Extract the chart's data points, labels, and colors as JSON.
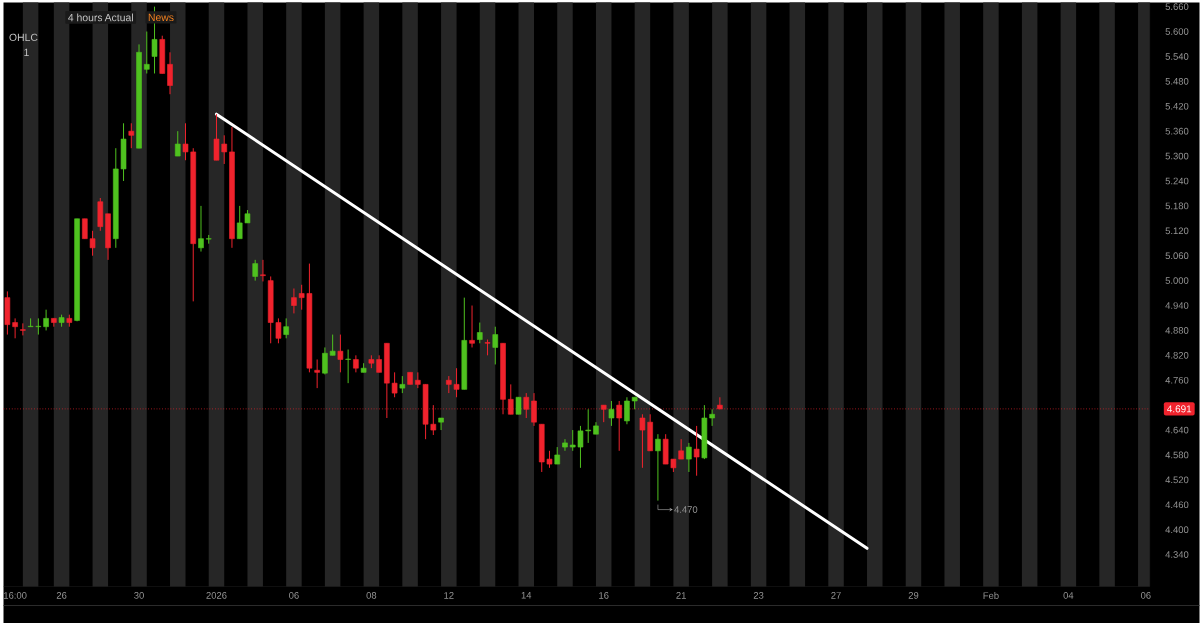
{
  "chart_data": {
    "type": "candlestick",
    "categories": [
      null,
      "16:00",
      null,
      null,
      null,
      null,
      null,
      "26",
      null,
      null,
      null,
      null,
      null,
      null,
      null,
      null,
      null,
      "30",
      null,
      null,
      null,
      null,
      null,
      null,
      null,
      null,
      null,
      "2026",
      null,
      null,
      null,
      null,
      null,
      null,
      null,
      null,
      null,
      "06",
      null,
      null,
      null,
      null,
      null,
      null,
      null,
      null,
      null,
      "08",
      null,
      null,
      null,
      null,
      null,
      null,
      null,
      null,
      null,
      "12",
      null,
      null,
      null,
      null,
      null,
      null,
      null,
      null,
      null,
      "14",
      null,
      null,
      null,
      null,
      null,
      null,
      null,
      null,
      null,
      "16",
      null,
      null,
      null,
      null,
      null,
      null,
      null,
      null,
      null,
      "21",
      null,
      null,
      null,
      null,
      null,
      null,
      null,
      null,
      null,
      "23",
      null,
      null,
      null,
      null,
      null,
      null,
      null,
      null,
      null,
      "27",
      null,
      null,
      null,
      null,
      null,
      null,
      null,
      null,
      null,
      "29",
      null,
      null,
      null,
      null,
      null,
      null,
      null,
      null,
      null,
      "Feb",
      null,
      null,
      null,
      null,
      null,
      null,
      null,
      null,
      null,
      "04",
      null,
      null,
      null,
      null,
      null,
      null,
      null,
      null,
      null,
      "06"
    ],
    "ohlc": [
      [
        4.959,
        4.974,
        4.87,
        4.894
      ],
      [
        4.899,
        4.909,
        4.861,
        4.889
      ],
      [
        4.882,
        4.897,
        4.868,
        4.88
      ],
      [
        4.889,
        4.909,
        4.889,
        4.89
      ],
      [
        4.889,
        4.909,
        4.87,
        4.89
      ],
      [
        4.889,
        4.93,
        4.88,
        4.909
      ],
      [
        4.909,
        4.909,
        4.889,
        4.899
      ],
      [
        4.899,
        4.918,
        4.889,
        4.911
      ],
      [
        4.909,
        4.918,
        4.889,
        4.899
      ],
      [
        4.904,
        5.149,
        4.902,
        5.149
      ],
      [
        5.149,
        5.149,
        5.101,
        5.101
      ],
      [
        5.101,
        5.12,
        5.06,
        5.079
      ],
      [
        5.19,
        5.199,
        5.12,
        5.13
      ],
      [
        5.161,
        5.161,
        5.05,
        5.079
      ],
      [
        5.101,
        5.319,
        5.079,
        5.269
      ],
      [
        5.269,
        5.379,
        5.24,
        5.341
      ],
      [
        5.36,
        5.379,
        5.319,
        5.35
      ],
      [
        5.319,
        5.569,
        5.319,
        5.55
      ],
      [
        5.509,
        5.6,
        5.499,
        5.521
      ],
      [
        5.54,
        5.66,
        5.499,
        5.581
      ],
      [
        5.581,
        5.59,
        5.499,
        5.499
      ],
      [
        5.521,
        5.55,
        5.449,
        5.47
      ],
      [
        5.3,
        5.36,
        5.3,
        5.329
      ],
      [
        5.329,
        5.379,
        5.29,
        5.31
      ],
      [
        5.31,
        5.319,
        4.95,
        5.089
      ],
      [
        5.079,
        5.18,
        5.07,
        5.101
      ],
      [
        5.1,
        5.11,
        5.089,
        5.101
      ],
      [
        5.341,
        5.401,
        5.29,
        5.29
      ],
      [
        5.329,
        5.35,
        5.281,
        5.31
      ],
      [
        5.31,
        5.37,
        5.079,
        5.101
      ],
      [
        5.101,
        5.18,
        5.101,
        5.139
      ],
      [
        5.139,
        5.17,
        5.139,
        5.161
      ],
      [
        5.01,
        5.05,
        5.0,
        5.041
      ],
      [
        5.014,
        5.05,
        4.998,
        5.012
      ],
      [
        5.0,
        5.01,
        4.849,
        4.899
      ],
      [
        4.899,
        4.909,
        4.849,
        4.861
      ],
      [
        4.87,
        4.909,
        4.861,
        4.889
      ],
      [
        4.959,
        4.981,
        4.921,
        4.94
      ],
      [
        4.969,
        4.99,
        4.93,
        4.959
      ],
      [
        4.969,
        5.041,
        4.779,
        4.789
      ],
      [
        4.784,
        4.81,
        4.741,
        4.779
      ],
      [
        4.777,
        4.839,
        4.774,
        4.825
      ],
      [
        4.82,
        4.87,
        4.82,
        4.83
      ],
      [
        4.83,
        4.87,
        4.779,
        4.81
      ],
      [
        4.81,
        4.834,
        4.753,
        4.811
      ],
      [
        4.81,
        4.82,
        4.779,
        4.789
      ],
      [
        4.779,
        4.801,
        4.779,
        4.789
      ],
      [
        4.81,
        4.82,
        4.789,
        4.801
      ],
      [
        4.81,
        4.82,
        4.779,
        4.779
      ],
      [
        4.849,
        4.849,
        4.669,
        4.753
      ],
      [
        4.753,
        4.779,
        4.719,
        4.729
      ],
      [
        4.741,
        4.77,
        4.729,
        4.75
      ],
      [
        4.779,
        4.779,
        4.75,
        4.75
      ],
      [
        4.76,
        4.779,
        4.741,
        4.75
      ],
      [
        4.75,
        4.75,
        4.618,
        4.654
      ],
      [
        4.654,
        4.7,
        4.628,
        4.64
      ],
      [
        4.659,
        4.669,
        4.64,
        4.669
      ],
      [
        4.76,
        4.77,
        4.729,
        4.75
      ],
      [
        4.75,
        4.789,
        4.719,
        4.738
      ],
      [
        4.738,
        4.959,
        4.738,
        4.856
      ],
      [
        4.856,
        4.94,
        4.839,
        4.849
      ],
      [
        4.858,
        4.899,
        4.849,
        4.875
      ],
      [
        4.851,
        4.858,
        4.82,
        4.849
      ],
      [
        4.839,
        4.889,
        4.798,
        4.87
      ],
      [
        4.849,
        4.849,
        4.678,
        4.714
      ],
      [
        4.714,
        4.75,
        4.678,
        4.678
      ],
      [
        4.678,
        4.719,
        4.678,
        4.719
      ],
      [
        4.719,
        4.729,
        4.669,
        4.69
      ],
      [
        4.71,
        4.729,
        4.65,
        4.659
      ],
      [
        4.654,
        4.654,
        4.539,
        4.563
      ],
      [
        4.57,
        4.59,
        4.549,
        4.558
      ],
      [
        4.558,
        4.599,
        4.558,
        4.58
      ],
      [
        4.599,
        4.618,
        4.59,
        4.609
      ],
      [
        4.599,
        4.64,
        4.59,
        4.604
      ],
      [
        4.599,
        4.65,
        4.549,
        4.638
      ],
      [
        4.638,
        4.69,
        4.609,
        4.64
      ],
      [
        4.63,
        4.659,
        4.63,
        4.65
      ],
      [
        4.7,
        4.7,
        4.659,
        4.69
      ],
      [
        4.669,
        4.71,
        4.65,
        4.69
      ],
      [
        4.7,
        4.71,
        4.59,
        4.669
      ],
      [
        4.662,
        4.719,
        4.654,
        4.71
      ],
      [
        4.71,
        4.719,
        4.69,
        4.719
      ],
      [
        4.669,
        4.678,
        4.549,
        4.64
      ],
      [
        4.659,
        4.678,
        4.59,
        4.59
      ],
      [
        4.59,
        4.63,
        4.47,
        4.618
      ],
      [
        4.618,
        4.63,
        4.558,
        4.558
      ],
      [
        4.57,
        4.57,
        4.539,
        4.549
      ],
      [
        4.59,
        4.618,
        4.57,
        4.57
      ],
      [
        4.57,
        4.609,
        4.539,
        4.599
      ],
      [
        4.594,
        4.65,
        4.53,
        4.575
      ],
      [
        4.573,
        4.7,
        4.57,
        4.669
      ],
      [
        4.669,
        4.69,
        4.65,
        4.678
      ],
      [
        4.7,
        4.719,
        4.69,
        4.691
      ],
      null,
      null,
      null,
      null,
      null,
      null,
      null,
      null,
      null,
      null,
      null,
      null,
      null,
      null,
      null,
      null,
      null,
      null,
      null,
      null,
      null,
      null,
      null,
      null,
      null,
      null,
      null,
      null,
      null,
      null,
      null,
      null,
      null,
      null,
      null,
      null,
      null,
      null,
      null,
      null,
      null,
      null,
      null,
      null,
      null,
      null,
      null,
      null,
      null,
      null,
      null,
      null,
      null,
      null,
      null
    ],
    "colors": [
      "#f0232d",
      "#f0232d",
      "#f0232d",
      "#4fc21f",
      "#4fc21f",
      "#4fc21f",
      "#f0232d",
      "#4fc21f",
      "#f0232d",
      "#4fc21f",
      "#f0232d",
      "#f0232d",
      "#f0232d",
      "#f0232d",
      "#4fc21f",
      "#4fc21f",
      "#f0232d",
      "#4fc21f",
      "#4fc21f",
      "#4fc21f",
      "#f0232d",
      "#f0232d",
      "#4fc21f",
      "#f0232d",
      "#f0232d",
      "#4fc21f",
      "#4fc21f",
      "#f0232d",
      "#f0232d",
      "#f0232d",
      "#4fc21f",
      "#4fc21f",
      "#4fc21f",
      "#f0232d",
      "#f0232d",
      "#f0232d",
      "#4fc21f",
      "#f0232d",
      "#f0232d",
      "#f0232d",
      "#f0232d",
      "#4fc21f",
      "#4fc21f",
      "#f0232d",
      "#4fc21f",
      "#f0232d",
      "#4fc21f",
      "#f0232d",
      "#f0232d",
      "#f0232d",
      "#f0232d",
      "#4fc21f",
      "#f0232d",
      "#f0232d",
      "#f0232d",
      "#f0232d",
      "#4fc21f",
      "#f0232d",
      "#f0232d",
      "#4fc21f",
      "#f0232d",
      "#4fc21f",
      "#f0232d",
      "#4fc21f",
      "#f0232d",
      "#f0232d",
      "#4fc21f",
      "#f0232d",
      "#f0232d",
      "#f0232d",
      "#f0232d",
      "#4fc21f",
      "#4fc21f",
      "#4fc21f",
      "#4fc21f",
      "#4fc21f",
      "#4fc21f",
      "#f0232d",
      "#4fc21f",
      "#f0232d",
      "#4fc21f",
      "#4fc21f",
      "#f0232d",
      "#f0232d",
      "#4fc21f",
      "#f0232d",
      "#f0232d",
      "#f0232d",
      "#4fc21f",
      "#f0232d",
      "#4fc21f",
      "#4fc21f",
      "#f0232d",
      null,
      null,
      null,
      null,
      null,
      null,
      null,
      null,
      null,
      null,
      null,
      null,
      null,
      null,
      null,
      null,
      null,
      null,
      null,
      null,
      null,
      null,
      null,
      null,
      null,
      null,
      null,
      null,
      null,
      null,
      null,
      null,
      null,
      null,
      null,
      null,
      null,
      null,
      null,
      null,
      null,
      null,
      null,
      null,
      null,
      null,
      null,
      null,
      null,
      null,
      null,
      null,
      null,
      null,
      null
    ],
    "series": [
      {
        "type": "line",
        "color": "#ffffff",
        "values": [
          null,
          null,
          null,
          null,
          null,
          null,
          null,
          null,
          null,
          null,
          null,
          null,
          null,
          null,
          null,
          null,
          null,
          null,
          null,
          null,
          null,
          null,
          null,
          null,
          null,
          null,
          null,
          5.401,
          null,
          null,
          null,
          null,
          null,
          null,
          null,
          null,
          null,
          null,
          null,
          null,
          null,
          null,
          null,
          null,
          null,
          null,
          null,
          null,
          null,
          null,
          null,
          null,
          null,
          null,
          null,
          null,
          null,
          null,
          null,
          null,
          null,
          null,
          null,
          null,
          null,
          null,
          null,
          null,
          null,
          null,
          null,
          null,
          null,
          null,
          null,
          null,
          null,
          null,
          null,
          null,
          null,
          null,
          null,
          null,
          null,
          null,
          null,
          null,
          null,
          null,
          null,
          null,
          null,
          null,
          null,
          null,
          null,
          null,
          null,
          null,
          null,
          null,
          null,
          null,
          null,
          null,
          null,
          null,
          null,
          null,
          null,
          4.355,
          null,
          null,
          null,
          null,
          null,
          null,
          null,
          null,
          null,
          null,
          null,
          null,
          null,
          null,
          null,
          null,
          null,
          null,
          null,
          null,
          null,
          null,
          null,
          null,
          null,
          null,
          null,
          null,
          null,
          null,
          null,
          null,
          null,
          null,
          null,
          null
        ]
      }
    ],
    "ylim": [
      4.263,
      5.67
    ],
    "yticks": [
      {
        "value": 4.34,
        "label": "4.340"
      },
      {
        "value": 4.4,
        "label": "4.400"
      },
      {
        "value": 4.46,
        "label": "4.460"
      },
      {
        "value": 4.52,
        "label": "4.520"
      },
      {
        "value": 4.58,
        "label": "4.580"
      },
      {
        "value": 4.64,
        "label": "4.640"
      },
      {
        "value": 4.76,
        "label": "4.760"
      },
      {
        "value": 4.82,
        "label": "4.820"
      },
      {
        "value": 4.88,
        "label": "4.880"
      },
      {
        "value": 4.94,
        "label": "4.940"
      },
      {
        "value": 5.0,
        "label": "5.000"
      },
      {
        "value": 5.06,
        "label": "5.060"
      },
      {
        "value": 5.12,
        "label": "5.120"
      },
      {
        "value": 5.18,
        "label": "5.180"
      },
      {
        "value": 5.24,
        "label": "5.240"
      },
      {
        "value": 5.3,
        "label": "5.300"
      },
      {
        "value": 5.36,
        "label": "5.360"
      },
      {
        "value": 5.42,
        "label": "5.420"
      },
      {
        "value": 5.48,
        "label": "5.480"
      },
      {
        "value": 5.54,
        "label": "5.540"
      },
      {
        "value": 5.6,
        "label": "5.600"
      },
      {
        "value": 5.66,
        "label": "5.660"
      }
    ],
    "ref_lines": [
      {
        "axis": "y",
        "value": 4.691,
        "label": "4.691",
        "color": "#f0232d",
        "line_style": "dotted"
      }
    ],
    "annotations": [
      "4 hours",
      "Actual",
      "News",
      "OHLC",
      "1",
      "4.470"
    ]
  }
}
